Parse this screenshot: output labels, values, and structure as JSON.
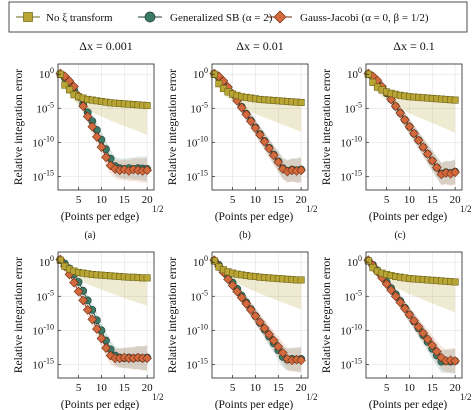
{
  "legend": {
    "placement": "top",
    "entries": [
      {
        "label": "No ξ transform",
        "color": "#b8a534",
        "edge": "#6f6418",
        "marker": "square"
      },
      {
        "label": "Generalized SB (α = 2)",
        "color": "#3a7a66",
        "edge": "#1f3f36",
        "marker": "circle"
      },
      {
        "label": "Gauss-Jacobi (α = 0, β = 1/2)",
        "color": "#d36a3e",
        "edge": "#6f2d14",
        "marker": "diamond"
      }
    ]
  },
  "panel_captions": [
    "(a)",
    "(b)",
    "(c)"
  ],
  "chart_data": [
    {
      "type": "line",
      "row": 0,
      "col": 0,
      "title": "Δx = 0.001",
      "xlabel": "(Points per edge)",
      "xlabel_exponent": "1/2",
      "ylabel": "Relative integration error",
      "x_ticks": [
        5,
        10,
        15,
        20
      ],
      "xlim": [
        0.5,
        21.5
      ],
      "y_ticks_exp": [
        0,
        -5,
        -10,
        -15
      ],
      "ylim_exp": [
        -17,
        1.5
      ],
      "yscale": "log",
      "x": [
        1,
        2,
        3,
        4,
        5,
        6,
        7,
        8,
        9,
        10,
        11,
        12,
        13,
        14,
        15,
        16,
        17,
        18,
        19,
        20
      ],
      "series": [
        {
          "name": "No ξ transform",
          "log10_values": [
            0,
            -1.6,
            -2.3,
            -3.0,
            -3.3,
            -3.5,
            -3.7,
            -3.8,
            -3.9,
            -4.0,
            -4.1,
            -4.2,
            -4.25,
            -4.3,
            -4.35,
            -4.4,
            -4.45,
            -4.5,
            -4.55,
            -4.6
          ],
          "band": [
            -3.0,
            -4.0
          ]
        },
        {
          "name": "Generalized SB (α = 2)",
          "log10_values": [
            0,
            -0.6,
            -1.4,
            -2.3,
            -3.3,
            -4.4,
            -5.6,
            -6.9,
            -8.2,
            -9.6,
            -11.0,
            -12.4,
            -13.5,
            -13.8,
            -13.9,
            -13.8,
            -13.9,
            -13.8,
            -13.85,
            -13.9
          ]
        },
        {
          "name": "Gauss-Jacobi (α = 0, β = 1/2)",
          "log10_values": [
            0.1,
            -0.3,
            -1.0,
            -1.8,
            -3.2,
            -4.7,
            -6.2,
            -7.7,
            -9.2,
            -10.7,
            -12.2,
            -13.4,
            -13.9,
            -14.1,
            -14.0,
            -14.2,
            -14.0,
            -14.1,
            -14.2,
            -14.1
          ]
        }
      ]
    },
    {
      "type": "line",
      "row": 0,
      "col": 1,
      "title": "Δx = 0.01",
      "xlabel": "(Points per edge)",
      "xlabel_exponent": "1/2",
      "ylabel": "Relative integration error",
      "x_ticks": [
        5,
        10,
        15,
        20
      ],
      "xlim": [
        0.5,
        21.5
      ],
      "y_ticks_exp": [
        0,
        -5,
        -10,
        -15
      ],
      "ylim_exp": [
        -17,
        1.5
      ],
      "yscale": "log",
      "x": [
        1,
        2,
        3,
        4,
        5,
        6,
        7,
        8,
        9,
        10,
        11,
        12,
        13,
        14,
        15,
        16,
        17,
        18,
        19,
        20
      ],
      "series": [
        {
          "name": "No ξ transform",
          "log10_values": [
            0,
            -1.4,
            -2.1,
            -2.6,
            -2.9,
            -3.1,
            -3.3,
            -3.4,
            -3.5,
            -3.6,
            -3.7,
            -3.75,
            -3.8,
            -3.85,
            -3.9,
            -3.95,
            -4.0,
            -4.05,
            -4.1,
            -4.15
          ],
          "band": [
            -3.0,
            -4.0
          ]
        },
        {
          "name": "Generalized SB (α = 2)",
          "log10_values": [
            0,
            -0.5,
            -1.2,
            -2.0,
            -2.9,
            -3.8,
            -4.8,
            -5.8,
            -6.8,
            -7.8,
            -8.8,
            -9.8,
            -10.8,
            -11.8,
            -12.8,
            -13.8,
            -14.2,
            -14.0,
            -14.1,
            -14.0
          ]
        },
        {
          "name": "Gauss-Jacobi (α = 0, β = 1/2)",
          "log10_values": [
            0.1,
            -0.3,
            -1.0,
            -1.9,
            -2.9,
            -3.9,
            -4.9,
            -5.9,
            -6.9,
            -7.9,
            -8.9,
            -9.9,
            -10.9,
            -11.9,
            -12.9,
            -13.9,
            -14.3,
            -14.1,
            -14.2,
            -14.1
          ]
        }
      ]
    },
    {
      "type": "line",
      "row": 0,
      "col": 2,
      "title": "Δx = 0.1",
      "xlabel": "(Points per edge)",
      "xlabel_exponent": "1/2",
      "ylabel": "Relative integration error",
      "x_ticks": [
        5,
        10,
        15,
        20
      ],
      "xlim": [
        0.5,
        21.5
      ],
      "y_ticks_exp": [
        0,
        -5,
        -10,
        -15
      ],
      "ylim_exp": [
        -17,
        1.5
      ],
      "yscale": "log",
      "x": [
        1,
        2,
        3,
        4,
        5,
        6,
        7,
        8,
        9,
        10,
        11,
        12,
        13,
        14,
        15,
        16,
        17,
        18,
        19,
        20
      ],
      "series": [
        {
          "name": "No ξ transform",
          "log10_values": [
            0,
            -1.2,
            -1.9,
            -2.3,
            -2.6,
            -2.8,
            -2.95,
            -3.1,
            -3.2,
            -3.3,
            -3.35,
            -3.4,
            -3.45,
            -3.5,
            -3.55,
            -3.6,
            -3.65,
            -3.7,
            -3.75,
            -3.8
          ],
          "band": [
            -3.2,
            -4.5
          ]
        },
        {
          "name": "Generalized SB (α = 2)",
          "log10_values": [
            0,
            -0.4,
            -1.1,
            -1.9,
            -2.8,
            -3.7,
            -4.7,
            -5.7,
            -6.7,
            -7.7,
            -8.7,
            -9.7,
            -10.7,
            -11.7,
            -12.7,
            -13.7,
            -14.6,
            -14.4,
            -14.5,
            -14.3
          ]
        },
        {
          "name": "Gauss-Jacobi (α = 0, β = 1/2)",
          "log10_values": [
            0.1,
            -0.3,
            -0.9,
            -1.8,
            -2.7,
            -3.7,
            -4.7,
            -5.7,
            -6.7,
            -7.7,
            -8.7,
            -9.7,
            -10.7,
            -11.7,
            -12.7,
            -13.7,
            -14.7,
            -14.5,
            -14.6,
            -14.4
          ]
        }
      ]
    },
    {
      "type": "line",
      "row": 1,
      "col": 0,
      "title": "",
      "xlabel": "(Points per edge)",
      "xlabel_exponent": "1/2",
      "ylabel": "Relative integration error",
      "x_ticks": [
        5,
        10,
        15,
        20
      ],
      "xlim": [
        0.5,
        21.5
      ],
      "y_ticks_exp": [
        0,
        -5,
        -10,
        -15
      ],
      "ylim_exp": [
        -17,
        1.5
      ],
      "yscale": "log",
      "x": [
        1,
        2,
        3,
        4,
        5,
        6,
        7,
        8,
        9,
        10,
        11,
        12,
        13,
        14,
        15,
        16,
        17,
        18,
        19,
        20
      ],
      "series": [
        {
          "name": "No ξ transform",
          "log10_values": [
            0.3,
            -0.6,
            -1.0,
            -1.3,
            -1.5,
            -1.6,
            -1.7,
            -1.8,
            -1.85,
            -1.9,
            -1.95,
            -2.0,
            -2.05,
            -2.1,
            -2.15,
            -2.2,
            -2.2,
            -2.25,
            -2.3,
            -2.3
          ],
          "band": [
            -2.5,
            -3.8
          ]
        },
        {
          "name": "Generalized SB (α = 2)",
          "log10_values": [
            0.3,
            -0.2,
            -0.9,
            -1.8,
            -2.9,
            -4.2,
            -5.6,
            -7.0,
            -8.5,
            -10.0,
            -11.5,
            -12.8,
            -13.7,
            -14.0,
            -14.1,
            -14.0,
            -14.1,
            -14.0,
            -14.1,
            -14.0
          ]
        },
        {
          "name": "Gauss-Jacobi (α = 0, β = 1/2)",
          "log10_values": [
            0.4,
            -0.6,
            -1.8,
            -3.0,
            -4.3,
            -5.6,
            -7.0,
            -8.4,
            -9.8,
            -11.2,
            -12.6,
            -13.7,
            -14.1,
            -14.1,
            -14.0,
            -14.1,
            -14.1,
            -14.0,
            -14.1,
            -14.1
          ]
        }
      ]
    },
    {
      "type": "line",
      "row": 1,
      "col": 1,
      "title": "",
      "xlabel": "(Points per edge)",
      "xlabel_exponent": "1/2",
      "ylabel": "Relative integration error",
      "x_ticks": [
        5,
        10,
        15,
        20
      ],
      "xlim": [
        0.5,
        21.5
      ],
      "y_ticks_exp": [
        0,
        -5,
        -10,
        -15
      ],
      "ylim_exp": [
        -17,
        1.5
      ],
      "yscale": "log",
      "x": [
        1,
        2,
        3,
        4,
        5,
        6,
        7,
        8,
        9,
        10,
        11,
        12,
        13,
        14,
        15,
        16,
        17,
        18,
        19,
        20
      ],
      "series": [
        {
          "name": "No ξ transform",
          "log10_values": [
            0.2,
            -0.7,
            -1.1,
            -1.4,
            -1.6,
            -1.75,
            -1.85,
            -1.95,
            -2.05,
            -2.1,
            -2.2,
            -2.25,
            -2.3,
            -2.35,
            -2.4,
            -2.45,
            -2.5,
            -2.55,
            -2.6,
            -2.6
          ],
          "band": [
            -2.6,
            -4.0
          ]
        },
        {
          "name": "Generalized SB (α = 2)",
          "log10_values": [
            0.2,
            -0.4,
            -1.2,
            -2.1,
            -3.0,
            -3.9,
            -4.9,
            -5.9,
            -6.9,
            -7.9,
            -8.9,
            -9.9,
            -10.9,
            -11.9,
            -12.9,
            -13.9,
            -14.3,
            -14.2,
            -14.3,
            -14.2
          ]
        },
        {
          "name": "Gauss-Jacobi (α = 0, β = 1/2)",
          "log10_values": [
            0.3,
            -0.6,
            -1.5,
            -2.5,
            -3.4,
            -4.3,
            -5.2,
            -6.1,
            -7.0,
            -7.9,
            -8.8,
            -9.7,
            -10.6,
            -11.5,
            -12.4,
            -13.3,
            -14.2,
            -14.4,
            -14.3,
            -14.4
          ]
        }
      ]
    },
    {
      "type": "line",
      "row": 1,
      "col": 2,
      "title": "",
      "xlabel": "(Points per edge)",
      "xlabel_exponent": "1/2",
      "ylabel": "Relative integration error",
      "x_ticks": [
        5,
        10,
        15,
        20
      ],
      "xlim": [
        0.5,
        21.5
      ],
      "y_ticks_exp": [
        0,
        -5,
        -10,
        -15
      ],
      "ylim_exp": [
        -17,
        1.5
      ],
      "yscale": "log",
      "x": [
        1,
        2,
        3,
        4,
        5,
        6,
        7,
        8,
        9,
        10,
        11,
        12,
        13,
        14,
        15,
        16,
        17,
        18,
        19,
        20
      ],
      "series": [
        {
          "name": "No ξ transform",
          "log10_values": [
            0.2,
            -0.8,
            -1.3,
            -1.6,
            -1.8,
            -1.95,
            -2.1,
            -2.2,
            -2.3,
            -2.4,
            -2.45,
            -2.5,
            -2.55,
            -2.6,
            -2.65,
            -2.7,
            -2.75,
            -2.8,
            -2.85,
            -2.9
          ],
          "band": [
            -2.8,
            -4.2
          ]
        },
        {
          "name": "Generalized SB (α = 2)",
          "log10_values": [
            0.2,
            -0.4,
            -1.2,
            -2.0,
            -2.9,
            -3.8,
            -4.7,
            -5.7,
            -6.7,
            -7.7,
            -8.7,
            -9.7,
            -10.7,
            -11.7,
            -12.7,
            -13.7,
            -14.6,
            -14.5,
            -14.6,
            -14.5
          ]
        },
        {
          "name": "Gauss-Jacobi (α = 0, β = 1/2)",
          "log10_values": [
            0.3,
            -0.5,
            -1.4,
            -2.3,
            -3.2,
            -4.1,
            -5.0,
            -5.9,
            -6.8,
            -7.7,
            -8.6,
            -9.5,
            -10.4,
            -11.3,
            -12.2,
            -13.1,
            -14.0,
            -14.5,
            -14.4,
            -14.5
          ]
        }
      ]
    }
  ]
}
